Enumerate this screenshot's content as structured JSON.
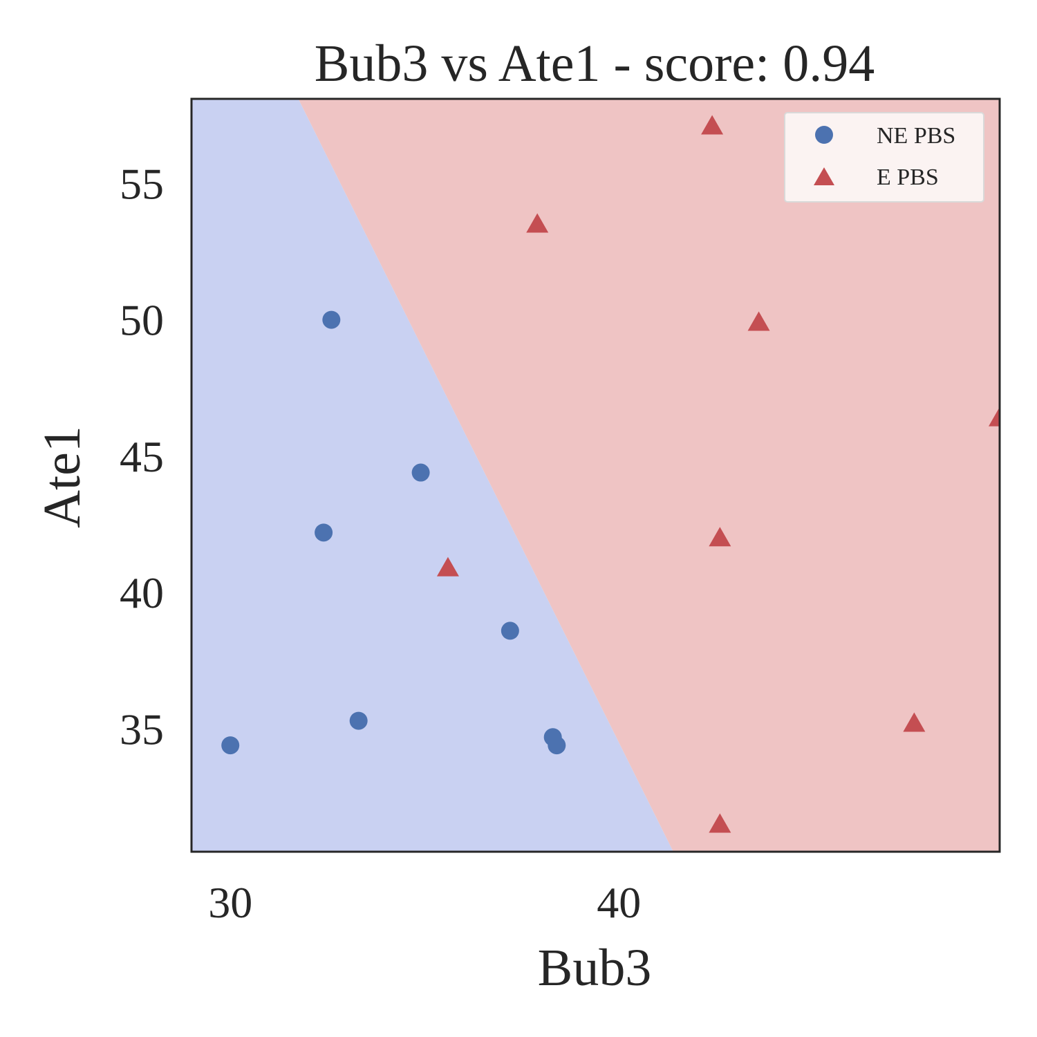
{
  "chart_data": {
    "type": "scatter",
    "title": "Bub3 vs Ate1 - score: 0.94",
    "xlabel": "Bub3",
    "ylabel": "Ate1",
    "xlim": [
      29.0,
      49.8
    ],
    "ylim": [
      30.5,
      58.1
    ],
    "xticks": [
      30,
      40
    ],
    "yticks": [
      35,
      40,
      45,
      50,
      55
    ],
    "grid": false,
    "legend_position": "top-right",
    "decision_boundary": {
      "points": [
        [
          31.75,
          58.1
        ],
        [
          41.4,
          30.5
        ]
      ],
      "left_region_color": "#c9d1f2",
      "right_region_color": "#efc4c4",
      "left_label": "NE PBS",
      "right_label": "E PBS"
    },
    "series": [
      {
        "name": "NE PBS",
        "marker": "circle",
        "color": "#4c72b0",
        "points": [
          [
            30.0,
            34.4
          ],
          [
            32.4,
            42.2
          ],
          [
            32.6,
            50.0
          ],
          [
            33.3,
            35.3
          ],
          [
            34.9,
            44.4
          ],
          [
            37.2,
            38.6
          ],
          [
            38.3,
            34.7
          ],
          [
            38.4,
            34.4
          ]
        ]
      },
      {
        "name": "E PBS",
        "marker": "triangle",
        "color": "#c44e52",
        "points": [
          [
            35.6,
            40.9
          ],
          [
            37.9,
            53.5
          ],
          [
            42.4,
            57.1
          ],
          [
            42.6,
            42.0
          ],
          [
            42.6,
            31.5
          ],
          [
            43.6,
            49.9
          ],
          [
            47.6,
            35.2
          ],
          [
            49.8,
            46.4
          ]
        ]
      }
    ]
  }
}
